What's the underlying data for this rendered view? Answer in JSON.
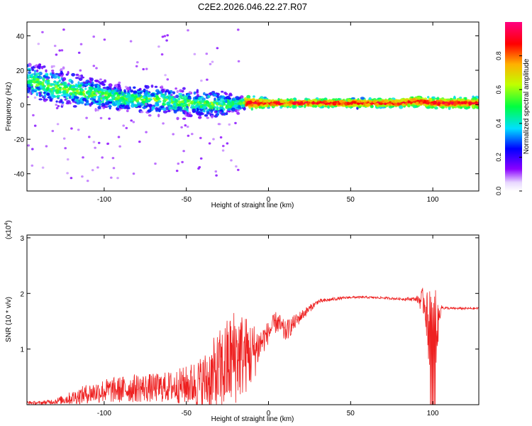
{
  "title": "C2E2.2026.046.22.27.R07",
  "chart_data": [
    {
      "type": "heatmap",
      "xlabel": "Height of straight line (km)",
      "ylabel": "Frequency (Hz)",
      "xlim": [
        -147,
        128
      ],
      "ylim": [
        -50,
        48
      ],
      "xticks": [
        -100,
        -50,
        0,
        50,
        100
      ],
      "yticks": [
        -40,
        -20,
        0,
        20,
        40
      ],
      "xtick_labels": [
        "-100",
        "-50",
        "0",
        "50",
        "100"
      ],
      "ytick_labels": [
        "-40",
        "-20",
        "0",
        "20",
        "40"
      ],
      "grid": false,
      "colorbar": {
        "label": "Normalized spectral amplitude",
        "range": [
          0,
          1
        ],
        "ticks": [
          0.0,
          0.2,
          0.4,
          0.6,
          0.8
        ],
        "tick_labels": [
          "0.0",
          "0.2",
          "0.4",
          "0.6",
          "0.8"
        ],
        "colormap": "rainbow (white-violet-blue-cyan-green-yellow-red-magenta)"
      },
      "ridge": {
        "description": "dominant frequency vs height",
        "x": [
          -147,
          -130,
          -110,
          -90,
          -70,
          -50,
          -30,
          -15,
          0,
          20,
          40,
          60,
          80,
          90,
          100,
          110,
          128
        ],
        "center_hz": [
          15,
          10,
          7,
          4,
          3,
          1,
          0,
          1,
          1,
          1,
          1,
          1,
          1,
          2,
          1,
          1,
          1
        ],
        "spread_hz": [
          8,
          8,
          7,
          6,
          6,
          6,
          6,
          3,
          1.5,
          1.5,
          1.5,
          1.5,
          1.5,
          2,
          2,
          2,
          2
        ]
      }
    },
    {
      "type": "line",
      "xlabel": "Height of straight line (km)",
      "ylabel": "SNR (10 * v/v)",
      "y_multiplier": "(x10",
      "y_multiplier_exp": "4",
      "xlim": [
        -147,
        128
      ],
      "ylim": [
        0,
        3.05
      ],
      "xticks": [
        -100,
        -50,
        0,
        50,
        100
      ],
      "yticks": [
        1,
        2,
        3
      ],
      "xtick_labels": [
        "-100",
        "-50",
        "0",
        "50",
        "100"
      ],
      "ytick_labels": [
        "1",
        "2",
        "3"
      ],
      "grid": false,
      "color": "#ee2020",
      "series": [
        {
          "x": [
            -147,
            -140,
            -130,
            -120,
            -110,
            -100,
            -90,
            -80,
            -70,
            -60,
            -50,
            -40,
            -30,
            -20,
            -10,
            -5,
            0,
            5,
            10,
            20,
            30,
            40,
            50,
            60,
            70,
            80,
            90,
            95,
            100,
            105,
            110,
            128
          ],
          "y": [
            0.04,
            0.03,
            0.06,
            0.12,
            0.2,
            0.25,
            0.27,
            0.3,
            0.3,
            0.32,
            0.35,
            0.4,
            0.55,
            0.9,
            0.9,
            1.1,
            1.3,
            1.5,
            1.3,
            1.6,
            1.85,
            1.9,
            1.93,
            1.93,
            1.92,
            1.9,
            1.9,
            1.85,
            0.9,
            1.75,
            1.73,
            1.73
          ],
          "noise": [
            0.03,
            0.03,
            0.05,
            0.12,
            0.18,
            0.22,
            0.24,
            0.26,
            0.26,
            0.28,
            0.35,
            0.5,
            0.8,
            0.9,
            0.6,
            0.3,
            0.2,
            0.2,
            0.2,
            0.1,
            0.04,
            0.03,
            0.02,
            0.02,
            0.02,
            0.02,
            0.04,
            0.3,
            0.9,
            0.04,
            0.02,
            0.02
          ]
        }
      ]
    }
  ]
}
